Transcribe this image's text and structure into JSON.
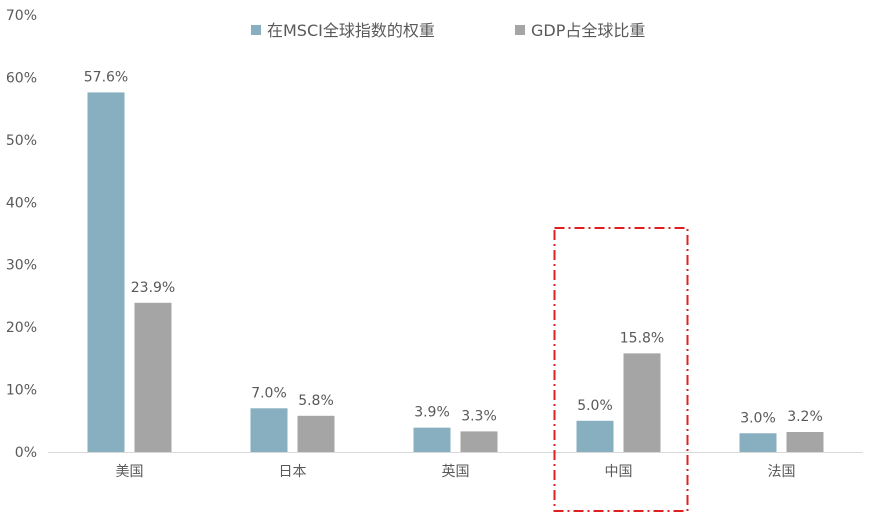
{
  "chart_data": {
    "type": "bar",
    "title": "",
    "xlabel": "",
    "ylabel": "",
    "ylim": [
      0,
      70
    ],
    "yticks": [
      0,
      10,
      20,
      30,
      40,
      50,
      60,
      70
    ],
    "ytick_labels": [
      "0%",
      "10%",
      "20%",
      "30%",
      "40%",
      "50%",
      "60%",
      "70%"
    ],
    "categories": [
      "美国",
      "日本",
      "英国",
      "中国",
      "法国"
    ],
    "series": [
      {
        "name": "在MSCI全球指数的权重",
        "values": [
          57.6,
          7.0,
          3.9,
          5.0,
          3.0
        ],
        "labels": [
          "57.6%",
          "7.0%",
          "3.9%",
          "5.0%",
          "3.0%"
        ],
        "color": "#87AFC0"
      },
      {
        "name": "GDP占全球比重",
        "values": [
          23.9,
          5.8,
          3.3,
          15.8,
          3.2
        ],
        "labels": [
          "23.9%",
          "5.8%",
          "3.3%",
          "15.8%",
          "3.2%"
        ],
        "color": "#A5A5A5"
      }
    ],
    "grid": false,
    "legend_position": "top-center",
    "highlight": {
      "category": "中国",
      "style": "dash-dot",
      "color": "#E02020"
    }
  }
}
